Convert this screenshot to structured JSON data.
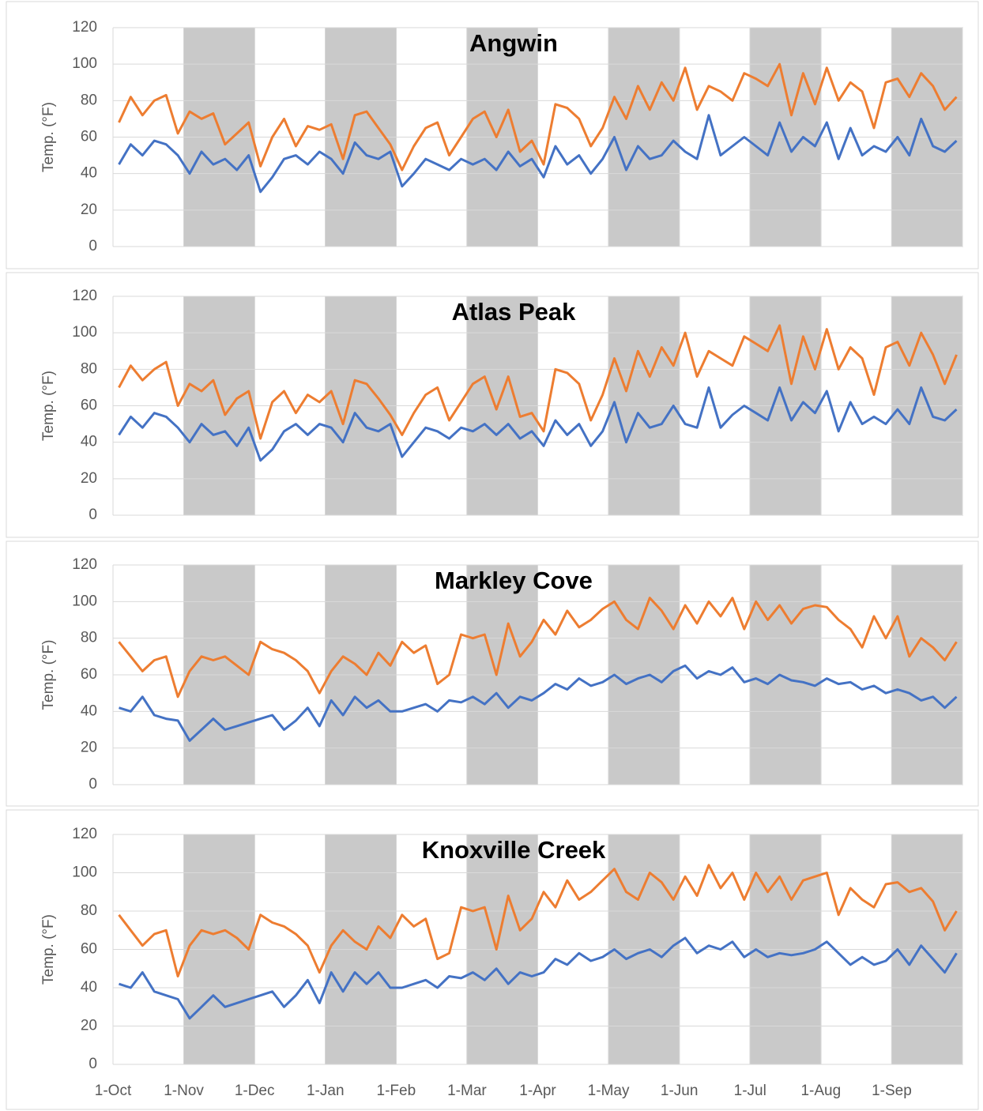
{
  "chart_data": [
    {
      "type": "line",
      "title": "Angwin",
      "y_label": "Temp. (°F)",
      "ylim": [
        0,
        120
      ],
      "yticks": [
        0,
        20,
        40,
        60,
        80,
        100,
        120
      ],
      "grid": true,
      "band_shading": true,
      "series": [
        {
          "color": "#ed7d31",
          "values": [
            68,
            82,
            72,
            80,
            83,
            62,
            74,
            70,
            73,
            56,
            62,
            68,
            44,
            60,
            70,
            55,
            66,
            64,
            67,
            48,
            72,
            74,
            65,
            56,
            42,
            55,
            65,
            68,
            50,
            60,
            70,
            74,
            60,
            75,
            52,
            58,
            45,
            78,
            76,
            70,
            55,
            65,
            82,
            70,
            88,
            75,
            90,
            80,
            98,
            75,
            88,
            85,
            80,
            95,
            92,
            88,
            100,
            72,
            95,
            78,
            98,
            80,
            90,
            85,
            65,
            90,
            92,
            82,
            95,
            88,
            75,
            82
          ]
        },
        {
          "color": "#4472c4",
          "values": [
            45,
            56,
            50,
            58,
            56,
            50,
            40,
            52,
            45,
            48,
            42,
            50,
            30,
            38,
            48,
            50,
            45,
            52,
            48,
            40,
            57,
            50,
            48,
            52,
            33,
            40,
            48,
            45,
            42,
            48,
            45,
            48,
            42,
            52,
            44,
            48,
            38,
            55,
            45,
            50,
            40,
            48,
            60,
            42,
            55,
            48,
            50,
            58,
            52,
            48,
            72,
            50,
            55,
            60,
            55,
            50,
            68,
            52,
            60,
            55,
            68,
            48,
            65,
            50,
            55,
            52,
            60,
            50,
            70,
            55,
            52,
            58
          ]
        }
      ]
    },
    {
      "type": "line",
      "title": "Atlas Peak",
      "y_label": "Temp. (°F)",
      "ylim": [
        0,
        120
      ],
      "yticks": [
        0,
        20,
        40,
        60,
        80,
        100,
        120
      ],
      "grid": true,
      "band_shading": true,
      "series": [
        {
          "color": "#ed7d31",
          "values": [
            70,
            82,
            74,
            80,
            84,
            60,
            72,
            68,
            74,
            55,
            64,
            68,
            42,
            62,
            68,
            56,
            66,
            62,
            68,
            50,
            74,
            72,
            64,
            55,
            44,
            56,
            66,
            70,
            52,
            62,
            72,
            76,
            58,
            76,
            54,
            56,
            46,
            80,
            78,
            72,
            52,
            66,
            86,
            68,
            90,
            76,
            92,
            82,
            100,
            76,
            90,
            86,
            82,
            98,
            94,
            90,
            104,
            72,
            98,
            80,
            102,
            80,
            92,
            86,
            66,
            92,
            95,
            82,
            100,
            88,
            72,
            88
          ]
        },
        {
          "color": "#4472c4",
          "values": [
            44,
            54,
            48,
            56,
            54,
            48,
            40,
            50,
            44,
            46,
            38,
            48,
            30,
            36,
            46,
            50,
            44,
            50,
            48,
            40,
            56,
            48,
            46,
            50,
            32,
            40,
            48,
            46,
            42,
            48,
            46,
            50,
            44,
            50,
            42,
            46,
            38,
            52,
            44,
            50,
            38,
            46,
            62,
            40,
            56,
            48,
            50,
            60,
            50,
            48,
            70,
            48,
            55,
            60,
            56,
            52,
            70,
            52,
            62,
            56,
            68,
            46,
            62,
            50,
            54,
            50,
            58,
            50,
            70,
            54,
            52,
            58
          ]
        }
      ]
    },
    {
      "type": "line",
      "title": "Markley Cove",
      "y_label": "Temp. (°F)",
      "ylim": [
        0,
        120
      ],
      "yticks": [
        0,
        20,
        40,
        60,
        80,
        100,
        120
      ],
      "grid": true,
      "band_shading": true,
      "series": [
        {
          "color": "#ed7d31",
          "values": [
            78,
            70,
            62,
            68,
            70,
            48,
            62,
            70,
            68,
            70,
            65,
            60,
            78,
            74,
            72,
            68,
            62,
            50,
            62,
            70,
            66,
            60,
            72,
            65,
            78,
            72,
            76,
            55,
            60,
            82,
            80,
            82,
            60,
            88,
            70,
            78,
            90,
            82,
            95,
            86,
            90,
            96,
            100,
            90,
            85,
            102,
            95,
            85,
            98,
            88,
            100,
            92,
            102,
            85,
            100,
            90,
            98,
            88,
            96,
            98,
            97,
            90,
            85,
            75,
            92,
            80,
            92,
            70,
            80,
            75,
            68,
            78
          ]
        },
        {
          "color": "#4472c4",
          "values": [
            42,
            40,
            48,
            38,
            36,
            35,
            24,
            30,
            36,
            30,
            32,
            34,
            36,
            38,
            30,
            35,
            42,
            32,
            46,
            38,
            48,
            42,
            46,
            40,
            40,
            42,
            44,
            40,
            46,
            45,
            48,
            44,
            50,
            42,
            48,
            46,
            50,
            55,
            52,
            58,
            54,
            56,
            60,
            55,
            58,
            60,
            56,
            62,
            65,
            58,
            62,
            60,
            64,
            56,
            58,
            55,
            60,
            57,
            56,
            54,
            58,
            55,
            56,
            52,
            54,
            50,
            52,
            50,
            46,
            48,
            42,
            48
          ]
        }
      ]
    },
    {
      "type": "line",
      "title": "Knoxville Creek",
      "y_label": "Temp. (°F)",
      "ylim": [
        0,
        120
      ],
      "yticks": [
        0,
        20,
        40,
        60,
        80,
        100,
        120
      ],
      "grid": true,
      "band_shading": true,
      "categories": [
        "1-Oct",
        null,
        null,
        null,
        null,
        null,
        "1-Nov",
        null,
        null,
        null,
        null,
        null,
        "1-Dec",
        null,
        null,
        null,
        null,
        null,
        "1-Jan",
        null,
        null,
        null,
        null,
        null,
        "1-Feb",
        null,
        null,
        null,
        null,
        null,
        "1-Mar",
        null,
        null,
        null,
        null,
        null,
        "1-Apr",
        null,
        null,
        null,
        null,
        null,
        "1-May",
        null,
        null,
        null,
        null,
        null,
        "1-Jun",
        null,
        null,
        null,
        null,
        null,
        "1-Jul",
        null,
        null,
        null,
        null,
        null,
        "1-Aug",
        null,
        null,
        null,
        null,
        null,
        "1-Sep",
        null,
        null,
        null,
        null,
        null
      ],
      "series": [
        {
          "color": "#ed7d31",
          "values": [
            78,
            70,
            62,
            68,
            70,
            46,
            62,
            70,
            68,
            70,
            66,
            60,
            78,
            74,
            72,
            68,
            62,
            48,
            62,
            70,
            64,
            60,
            72,
            66,
            78,
            72,
            76,
            55,
            58,
            82,
            80,
            82,
            60,
            88,
            70,
            76,
            90,
            82,
            96,
            86,
            90,
            96,
            102,
            90,
            86,
            100,
            95,
            86,
            98,
            88,
            104,
            92,
            100,
            86,
            100,
            90,
            98,
            86,
            96,
            98,
            100,
            78,
            92,
            86,
            82,
            94,
            95,
            90,
            92,
            85,
            70,
            80
          ]
        },
        {
          "color": "#4472c4",
          "values": [
            42,
            40,
            48,
            38,
            36,
            34,
            24,
            30,
            36,
            30,
            32,
            34,
            36,
            38,
            30,
            36,
            44,
            32,
            48,
            38,
            48,
            42,
            48,
            40,
            40,
            42,
            44,
            40,
            46,
            45,
            48,
            44,
            50,
            42,
            48,
            46,
            48,
            55,
            52,
            58,
            54,
            56,
            60,
            55,
            58,
            60,
            56,
            62,
            66,
            58,
            62,
            60,
            64,
            56,
            60,
            56,
            58,
            57,
            58,
            60,
            64,
            58,
            52,
            56,
            52,
            54,
            60,
            52,
            62,
            55,
            48,
            58
          ]
        }
      ]
    }
  ]
}
